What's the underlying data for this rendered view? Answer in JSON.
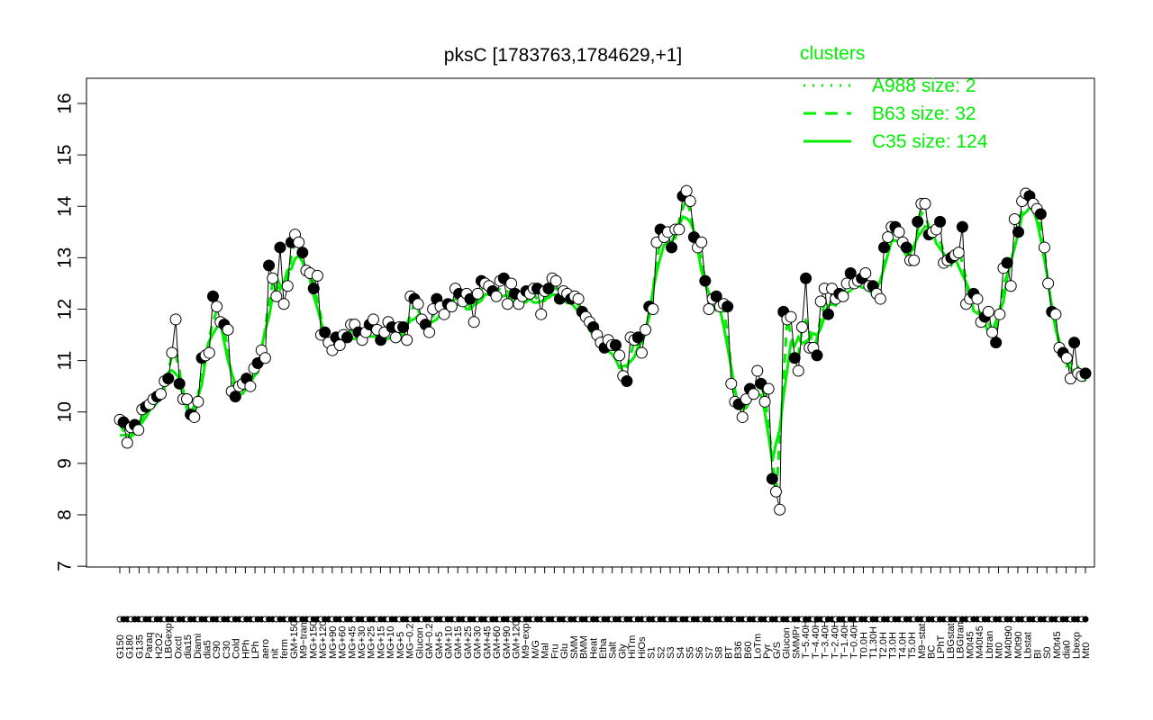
{
  "chart_data": {
    "type": "line",
    "title": "pksC [1783763,1784629,+1]",
    "ylim": [
      7,
      16
    ],
    "yticks": [
      7,
      8,
      9,
      10,
      11,
      12,
      13,
      14,
      15,
      16
    ],
    "colors": {
      "line": "#00ee00",
      "point_filled": "#000000",
      "point_open": "#ffffff",
      "ink": "#000000"
    },
    "legend": {
      "title": "clusters",
      "placement": "top-right",
      "entries": [
        {
          "label": "A988 size: 2",
          "style": "dotted"
        },
        {
          "label": "B63 size: 32",
          "style": "dashed"
        },
        {
          "label": "C35 size: 124",
          "style": "solid"
        }
      ]
    },
    "xlabels": [
      "G150",
      "G180",
      "G135",
      "Paraq",
      "H2O2",
      "LBGexp",
      "Oxctl",
      "dia15",
      "Diami",
      "dia5",
      "C90",
      "C30",
      "Cold",
      "HPh",
      "LPh",
      "aero",
      "nit",
      "ferm",
      "GM+150",
      "M9−tran",
      "MG+150",
      "MG+120",
      "MG+90",
      "MG+60",
      "MG+45",
      "MG+30",
      "MG+25",
      "MG+15",
      "MG+10",
      "MG+5",
      "MG−0.2",
      "Glucon",
      "GM−0.2",
      "GM+5",
      "GM+10",
      "GM+15",
      "GM+25",
      "GM+30",
      "GM+45",
      "GM+60",
      "GM+90",
      "GM+120",
      "M9−exp",
      "M/G",
      "Mal",
      "Fru",
      "Glu",
      "SMM",
      "BMM",
      "Heat",
      "Etha",
      "Salt",
      "Gly",
      "HiTm",
      "HiOs",
      "S1",
      "S2",
      "S3",
      "S4",
      "S5",
      "S6",
      "S7",
      "S8",
      "BT",
      "B36",
      "B60",
      "LoTm",
      "Pyr",
      "G/S",
      "Glucon",
      "SMMPr",
      "T−5.40H",
      "T−4.40H",
      "T−3.40H",
      "T−2.40H",
      "T−1.40H",
      "T−0.40H",
      "T0.0H",
      "T1.30H",
      "T2.0H",
      "T3.0H",
      "T4.0H",
      "T5.0H",
      "M9−stat",
      "BC",
      "LPhT",
      "LBGstat",
      "LBGtran",
      "M0t45",
      "M40t45",
      "Lbtran",
      "Mt0",
      "M40t90",
      "M0t90",
      "Lbstat",
      "BI",
      "S0",
      "M0t45",
      "dia0",
      "Lbexp",
      "Mt0"
    ],
    "series": [
      {
        "values": [
          9.85,
          9.8,
          9.4,
          9.7,
          9.75,
          9.65,
          10.05,
          10.1,
          10.15,
          10.25,
          10.3,
          10.35,
          10.6,
          10.65,
          11.15,
          11.8,
          10.55,
          10.25,
          10.25,
          9.95,
          9.9,
          10.2,
          11.05,
          11.1,
          11.15,
          12.25,
          12.05,
          11.75,
          11.7,
          11.6,
          10.4,
          10.3,
          10.5,
          10.55,
          10.65,
          10.5,
          10.85,
          10.95,
          11.2,
          11.05,
          12.85,
          12.6,
          12.25,
          13.2,
          12.1,
          12.45,
          13.3,
          13.45,
          13.3,
          13.1,
          12.75,
          12.7,
          12.4,
          12.65,
          11.5,
          11.55,
          11.35,
          11.2,
          11.45,
          11.3,
          11.5,
          11.45,
          11.7,
          11.7,
          11.55,
          11.4,
          11.55,
          11.7,
          11.8,
          11.6,
          11.4,
          11.55,
          11.75,
          11.65,
          11.45,
          11.65,
          11.65,
          11.4,
          12.25,
          12.2,
          12.1,
          11.8,
          11.7,
          11.55,
          12.0,
          12.2,
          12.05,
          11.9,
          12.1,
          12.05,
          12.4,
          12.3,
          12.15,
          12.3,
          12.2,
          11.75,
          12.3,
          12.55,
          12.5,
          12.45,
          12.35,
          12.25,
          12.55,
          12.6,
          12.1,
          12.5,
          12.3,
          12.1,
          12.25,
          12.35,
          12.3,
          12.4,
          12.4,
          11.9,
          12.35,
          12.4,
          12.6,
          12.55,
          12.2,
          12.35,
          12.3,
          12.2,
          12.25,
          12.2,
          11.95,
          11.85,
          11.75,
          11.65,
          11.5,
          11.35,
          11.25,
          11.4,
          11.3,
          11.3,
          11.1,
          10.7,
          10.6,
          11.45,
          11.4,
          11.45,
          11.15,
          11.6,
          12.05,
          12.0,
          13.3,
          13.55,
          13.4,
          13.5,
          13.2,
          13.55,
          13.55,
          14.2,
          14.3,
          14.1,
          13.4,
          13.2,
          13.3,
          12.55,
          12.0,
          12.2,
          12.25,
          12.05,
          12.1,
          12.05,
          10.55,
          10.2,
          10.15,
          9.9,
          10.25,
          10.45,
          10.35,
          10.8,
          10.55,
          10.2,
          10.45,
          8.7,
          8.45,
          8.1,
          11.95,
          11.8,
          11.85,
          11.05,
          10.8,
          11.65,
          12.6,
          11.25,
          11.25,
          11.1,
          12.15,
          12.4,
          11.9,
          12.4,
          12.2,
          12.3,
          12.25,
          12.5,
          12.7,
          12.5,
          12.55,
          12.6,
          12.7,
          12.45,
          12.45,
          12.3,
          12.2,
          13.2,
          13.4,
          13.6,
          13.6,
          13.5,
          13.3,
          13.2,
          12.95,
          12.95,
          13.7,
          14.05,
          14.05,
          13.45,
          13.5,
          13.55,
          13.7,
          12.9,
          12.95,
          13.0,
          13.05,
          13.1,
          13.6,
          12.1,
          12.2,
          12.3,
          12.2,
          11.75,
          11.85,
          11.95,
          11.55,
          11.35,
          11.9,
          12.8,
          12.9,
          12.45,
          13.75,
          13.5,
          14.1,
          14.25,
          14.2,
          14.05,
          13.95,
          13.85,
          13.2,
          12.5,
          11.95,
          11.9,
          11.25,
          11.15,
          11.05,
          10.65,
          11.35,
          10.75,
          10.7,
          10.75
        ]
      }
    ]
  }
}
